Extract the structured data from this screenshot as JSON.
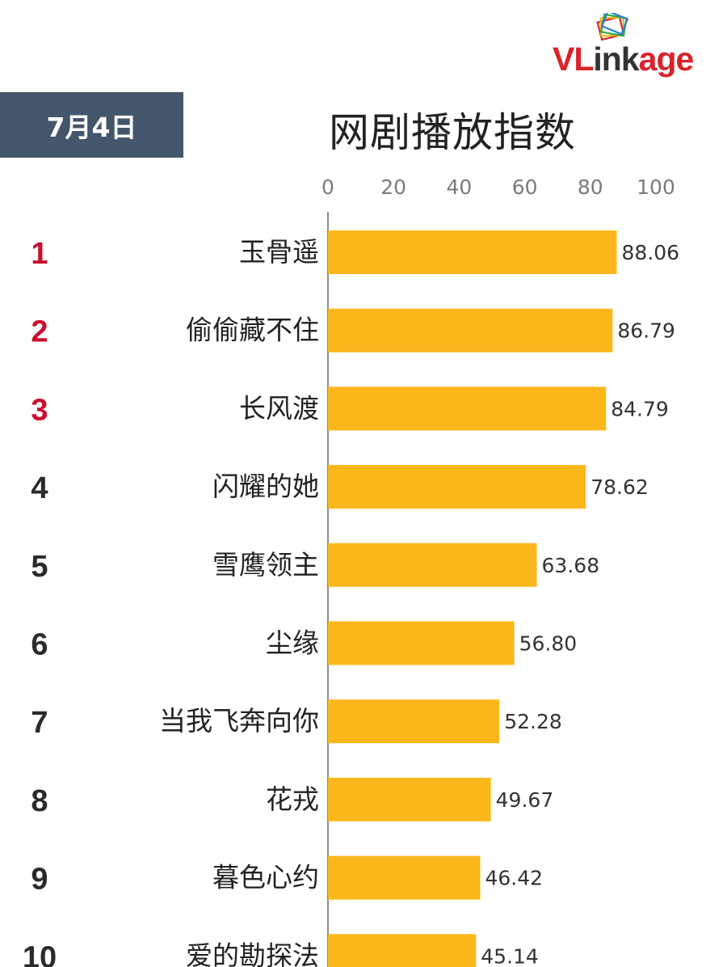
{
  "brand": {
    "logo_text": "VLinkage",
    "logo_part1": "VL",
    "logo_part2": "ink",
    "logo_part3": "age"
  },
  "date_label": "7月4日",
  "chart_data": {
    "type": "bar",
    "orientation": "horizontal",
    "title": "网剧播放指数",
    "ranks": [
      "1",
      "2",
      "3",
      "4",
      "5",
      "6",
      "7",
      "8",
      "9",
      "10"
    ],
    "categories": [
      "玉骨遥",
      "偷偷藏不住",
      "长风渡",
      "闪耀的她",
      "雪鹰领主",
      "尘缘",
      "当我飞奔向你",
      "花戎",
      "暮色心约",
      "爱的勘探法"
    ],
    "values": [
      88.06,
      86.79,
      84.79,
      78.62,
      63.68,
      56.8,
      52.28,
      49.67,
      46.42,
      45.14
    ],
    "value_labels": [
      "88.06",
      "86.79",
      "84.79",
      "78.62",
      "63.68",
      "56.80",
      "52.28",
      "49.67",
      "46.42",
      "45.14"
    ],
    "xlim": [
      0,
      100
    ],
    "x_ticks": [
      "0",
      "20",
      "40",
      "60",
      "80",
      "100"
    ],
    "x_tick_values": [
      0,
      20,
      40,
      60,
      80,
      100
    ],
    "axis_position": "top",
    "grid": false,
    "colors": {
      "bar": "#fbb71c",
      "rank_top3": "#c8102e",
      "rank_other": "#2b2b2b",
      "date_bg": "#43566b"
    }
  }
}
